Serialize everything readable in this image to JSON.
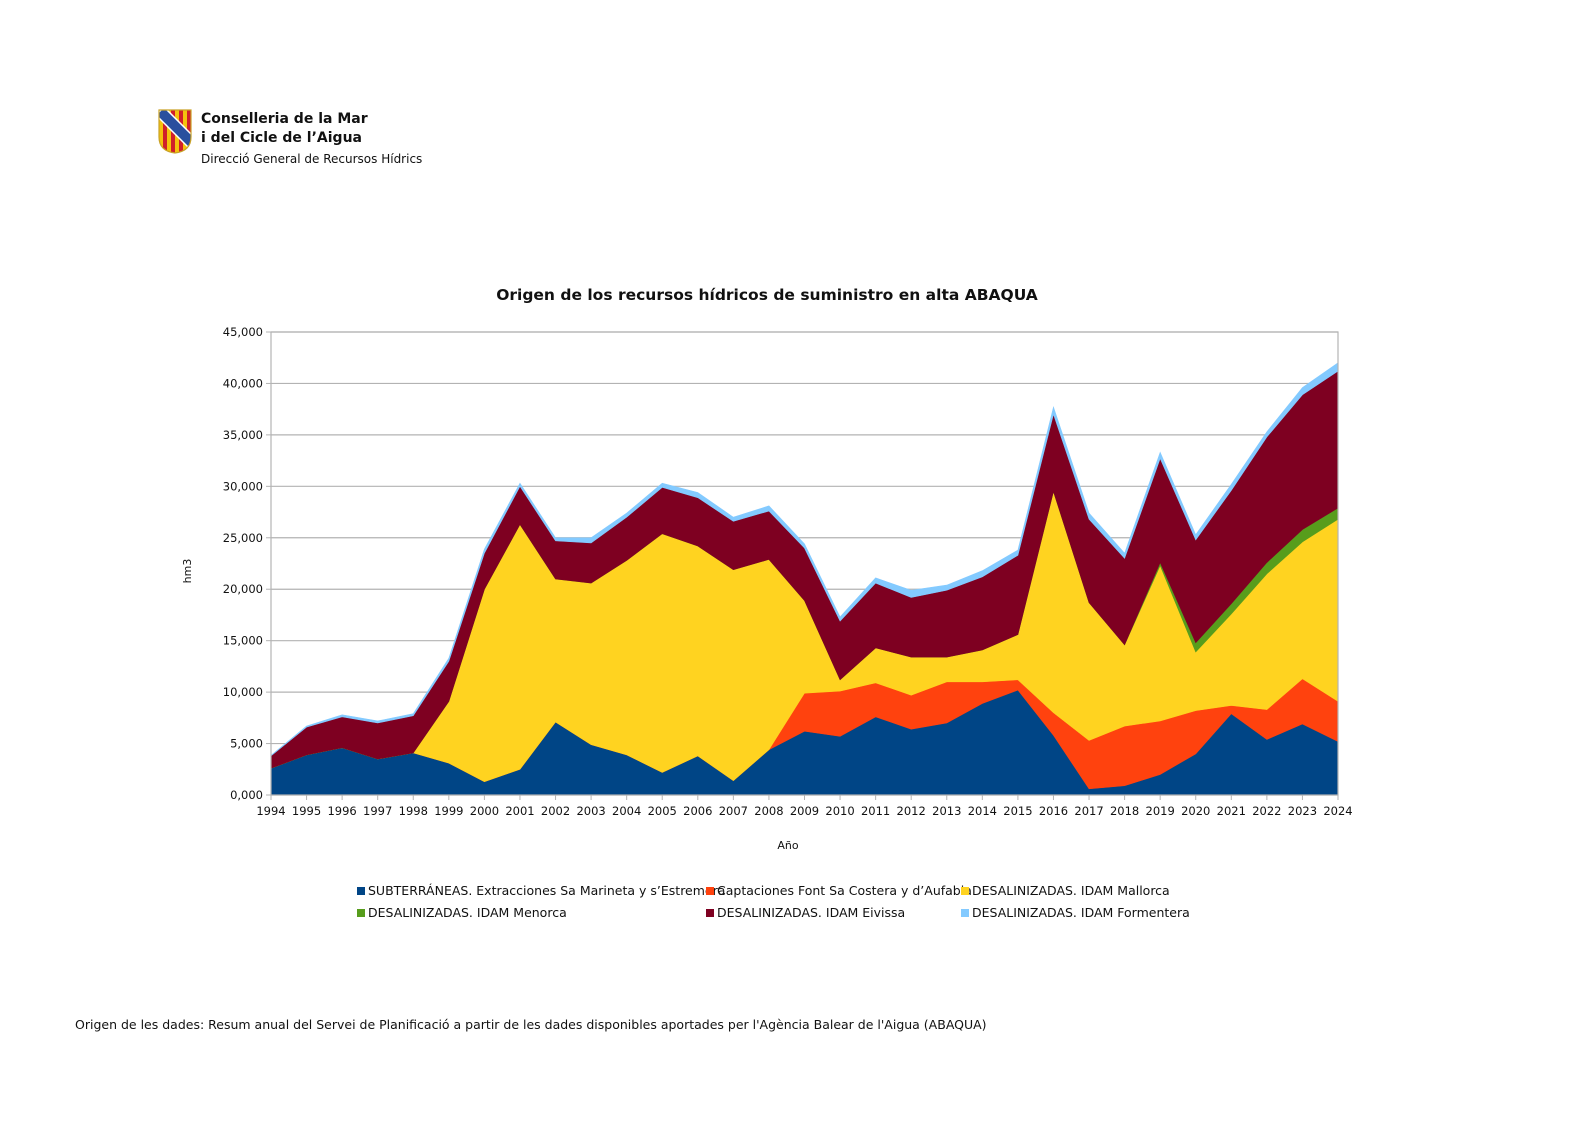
{
  "header": {
    "org_line1": "Conselleria de la Mar",
    "org_line2": "i del Cicle de l’Aigua",
    "org_line3": "Direcció General de Recursos Hídrics"
  },
  "footer": {
    "source": "Origen de les dades: Resum anual del Servei de Planificació a partir de les dades disponibles aportades per l'Agència Balear de l'Aigua (ABAQUA)"
  },
  "chart_data": {
    "type": "area",
    "stacked": true,
    "title": "Origen de los recursos hídricos de suministro en alta ABAQUA",
    "xlabel": "Año",
    "ylabel": "hm3",
    "ylim": [
      0,
      45
    ],
    "yticks": [
      "0,000",
      "5,000",
      "10,000",
      "15,000",
      "20,000",
      "25,000",
      "30,000",
      "35,000",
      "40,000",
      "45,000"
    ],
    "grid": true,
    "legend_position": "bottom",
    "categories": [
      "1994",
      "1995",
      "1996",
      "1997",
      "1998",
      "1999",
      "2000",
      "2001",
      "2002",
      "2003",
      "2004",
      "2005",
      "2006",
      "2007",
      "2008",
      "2009",
      "2010",
      "2011",
      "2012",
      "2013",
      "2014",
      "2015",
      "2016",
      "2017",
      "2018",
      "2019",
      "2020",
      "2021",
      "2022",
      "2023",
      "2024"
    ],
    "series": [
      {
        "name": "SUBTERRÁNEAS. Extracciones Sa Marineta y s’Estremera",
        "color": "#004586",
        "values": [
          2.6,
          3.9,
          4.6,
          3.5,
          4.1,
          3.1,
          1.3,
          2.5,
          7.1,
          4.9,
          3.9,
          2.2,
          3.8,
          1.4,
          4.4,
          6.2,
          5.7,
          7.6,
          6.4,
          7.0,
          8.9,
          10.2,
          5.8,
          0.6,
          0.9,
          2.0,
          4.0,
          7.9,
          5.4,
          6.9,
          5.2
        ]
      },
      {
        "name": "Captaciones Font Sa Costera y d’Aufabia",
        "color": "#ff420e",
        "values": [
          0,
          0,
          0,
          0,
          0,
          0,
          0,
          0,
          0,
          0,
          0,
          0,
          0,
          0,
          0,
          3.7,
          4.4,
          3.3,
          3.3,
          4.0,
          2.1,
          1.0,
          2.2,
          4.7,
          5.8,
          5.2,
          4.2,
          0.8,
          2.9,
          4.4,
          3.9
        ]
      },
      {
        "name": "DESALINIZADAS. IDAM Mallorca",
        "color": "#ffd320",
        "values": [
          0,
          0,
          0,
          0,
          0,
          6.0,
          18.7,
          23.8,
          13.9,
          15.7,
          18.9,
          23.2,
          20.4,
          20.5,
          18.5,
          9.0,
          1.1,
          3.4,
          3.7,
          2.4,
          3.1,
          4.4,
          21.5,
          13.4,
          7.9,
          15.1,
          5.7,
          8.9,
          13.2,
          13.3,
          17.7
        ]
      },
      {
        "name": "DESALINIZADAS. IDAM Menorca",
        "color": "#579d1c",
        "values": [
          0,
          0,
          0,
          0,
          0,
          0,
          0,
          0,
          0,
          0,
          0,
          0,
          0,
          0,
          0,
          0,
          0,
          0,
          0,
          0,
          0,
          0,
          0,
          0,
          0,
          0.3,
          0.9,
          1.0,
          1.1,
          1.2,
          1.1
        ]
      },
      {
        "name": "DESALINIZADAS. IDAM Eivissa",
        "color": "#7e0021",
        "values": [
          1.2,
          2.7,
          3.0,
          3.5,
          3.6,
          3.9,
          3.5,
          3.7,
          3.7,
          3.9,
          4.2,
          4.5,
          4.7,
          4.7,
          4.7,
          5.1,
          5.7,
          6.3,
          5.8,
          6.5,
          7.1,
          7.7,
          7.5,
          8.1,
          8.4,
          10.1,
          10.0,
          11.0,
          12.2,
          13.1,
          13.3
        ]
      },
      {
        "name": "DESALINIZADAS. IDAM Formentera",
        "color": "#83caff",
        "values": [
          0.05,
          0.1,
          0.2,
          0.2,
          0.2,
          0.3,
          0.4,
          0.3,
          0.3,
          0.5,
          0.4,
          0.4,
          0.5,
          0.4,
          0.5,
          0.4,
          0.4,
          0.5,
          0.7,
          0.5,
          0.6,
          0.5,
          0.7,
          0.6,
          0.5,
          0.6,
          0.5,
          0.6,
          0.5,
          0.7,
          0.8
        ]
      }
    ]
  }
}
